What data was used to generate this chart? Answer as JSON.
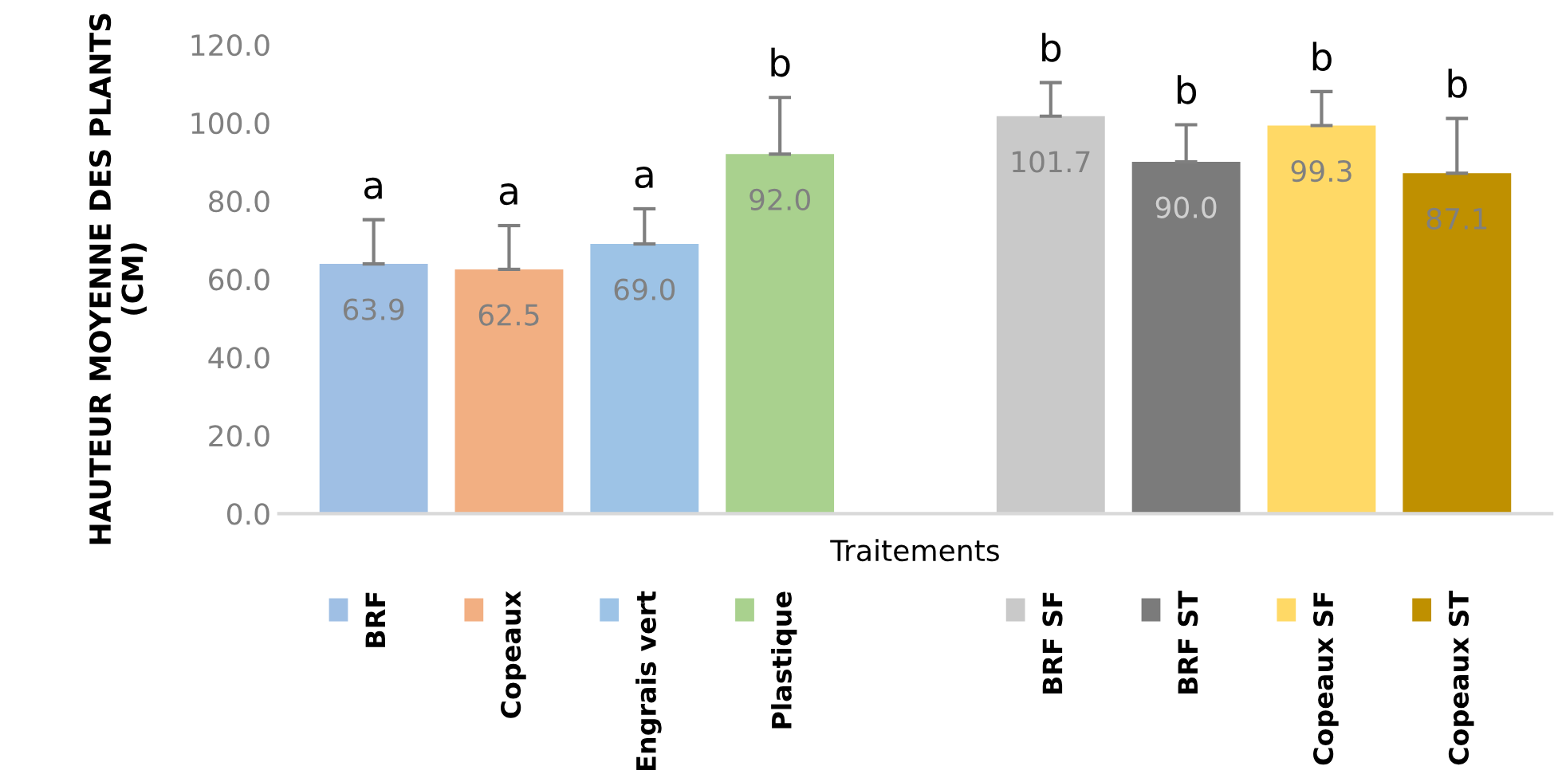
{
  "chart_data": {
    "type": "bar",
    "xlabel": "Traitements",
    "ylabel": "HAUTEUR MOYENNE DES PLANTS\n(CM)",
    "categories": [
      null,
      null,
      null,
      null,
      null,
      null,
      null,
      null,
      null
    ],
    "series": [
      {
        "name": "BRF",
        "color": "#9fbfe4",
        "values": [
          63.9,
          null,
          null,
          null,
          null,
          null,
          null,
          null,
          null
        ],
        "errors": [
          [
            63.9,
            75.2
          ],
          null,
          null,
          null,
          null,
          null,
          null,
          null,
          null
        ],
        "value_labels": [
          "63.9",
          null,
          null,
          null,
          null,
          null,
          null,
          null,
          null
        ]
      },
      {
        "name": "Copeaux",
        "color": "#f2af82",
        "values": [
          null,
          62.5,
          null,
          null,
          null,
          null,
          null,
          null,
          null
        ],
        "errors": [
          null,
          [
            62.5,
            73.7
          ],
          null,
          null,
          null,
          null,
          null,
          null,
          null
        ],
        "value_labels": [
          null,
          "62.5",
          null,
          null,
          null,
          null,
          null,
          null,
          null
        ]
      },
      {
        "name": "Engrais vert",
        "color": "#9dc3e6",
        "values": [
          null,
          null,
          69.0,
          null,
          null,
          null,
          null,
          null,
          null
        ],
        "errors": [
          null,
          null,
          [
            69.0,
            78.0
          ],
          null,
          null,
          null,
          null,
          null,
          null
        ],
        "value_labels": [
          null,
          null,
          "69.0",
          null,
          null,
          null,
          null,
          null,
          null
        ]
      },
      {
        "name": "Plastique",
        "color": "#a9d18e",
        "values": [
          null,
          null,
          null,
          92.0,
          null,
          null,
          null,
          null,
          null
        ],
        "errors": [
          null,
          null,
          null,
          [
            92.0,
            106.5
          ],
          null,
          null,
          null,
          null,
          null
        ],
        "value_labels": [
          null,
          null,
          null,
          "92.0",
          null,
          null,
          null,
          null,
          null
        ]
      },
      {
        "name": "BRF SF",
        "color": "#c9c9c9",
        "values": [
          null,
          null,
          null,
          null,
          null,
          101.7,
          null,
          null,
          null
        ],
        "errors": [
          null,
          null,
          null,
          null,
          null,
          [
            101.7,
            110.3
          ],
          null,
          null,
          null
        ],
        "value_labels": [
          null,
          null,
          null,
          null,
          null,
          "101.7",
          null,
          null,
          null
        ]
      },
      {
        "name": "BRF ST",
        "color": "#7b7b7b",
        "values": [
          null,
          null,
          null,
          null,
          null,
          null,
          90.0,
          null,
          null
        ],
        "errors": [
          null,
          null,
          null,
          null,
          null,
          null,
          [
            90.0,
            99.5
          ],
          null,
          null
        ],
        "value_labels": [
          null,
          null,
          null,
          null,
          null,
          null,
          "90.0",
          null,
          null
        ]
      },
      {
        "name": "Copeaux SF",
        "color": "#ffd966",
        "values": [
          null,
          null,
          null,
          null,
          null,
          null,
          null,
          99.3,
          null
        ],
        "errors": [
          null,
          null,
          null,
          null,
          null,
          null,
          null,
          [
            99.3,
            108.0
          ],
          null
        ],
        "value_labels": [
          null,
          null,
          null,
          null,
          null,
          null,
          null,
          "99.3",
          null
        ]
      },
      {
        "name": "Copeaux ST",
        "color": "#bf9000",
        "values": [
          null,
          null,
          null,
          null,
          null,
          null,
          null,
          null,
          87.1
        ],
        "errors": [
          null,
          null,
          null,
          null,
          null,
          null,
          null,
          null,
          [
            87.1,
            101.1
          ]
        ],
        "value_labels": [
          null,
          null,
          null,
          null,
          null,
          null,
          null,
          null,
          "87.1"
        ]
      }
    ],
    "ylim": [
      0,
      120
    ],
    "yticks": [
      {
        "value": 0,
        "label": "0.0"
      },
      {
        "value": 20,
        "label": "20.0"
      },
      {
        "value": 40,
        "label": "40.0"
      },
      {
        "value": 60,
        "label": "60.0"
      },
      {
        "value": 80,
        "label": "80.0"
      },
      {
        "value": 100,
        "label": "100.0"
      },
      {
        "value": 120,
        "label": "120.0"
      }
    ],
    "grid": false,
    "legend": "bottom",
    "annotations": [
      "a",
      "a",
      "a",
      "b",
      "b",
      "b",
      "b",
      "b"
    ]
  }
}
